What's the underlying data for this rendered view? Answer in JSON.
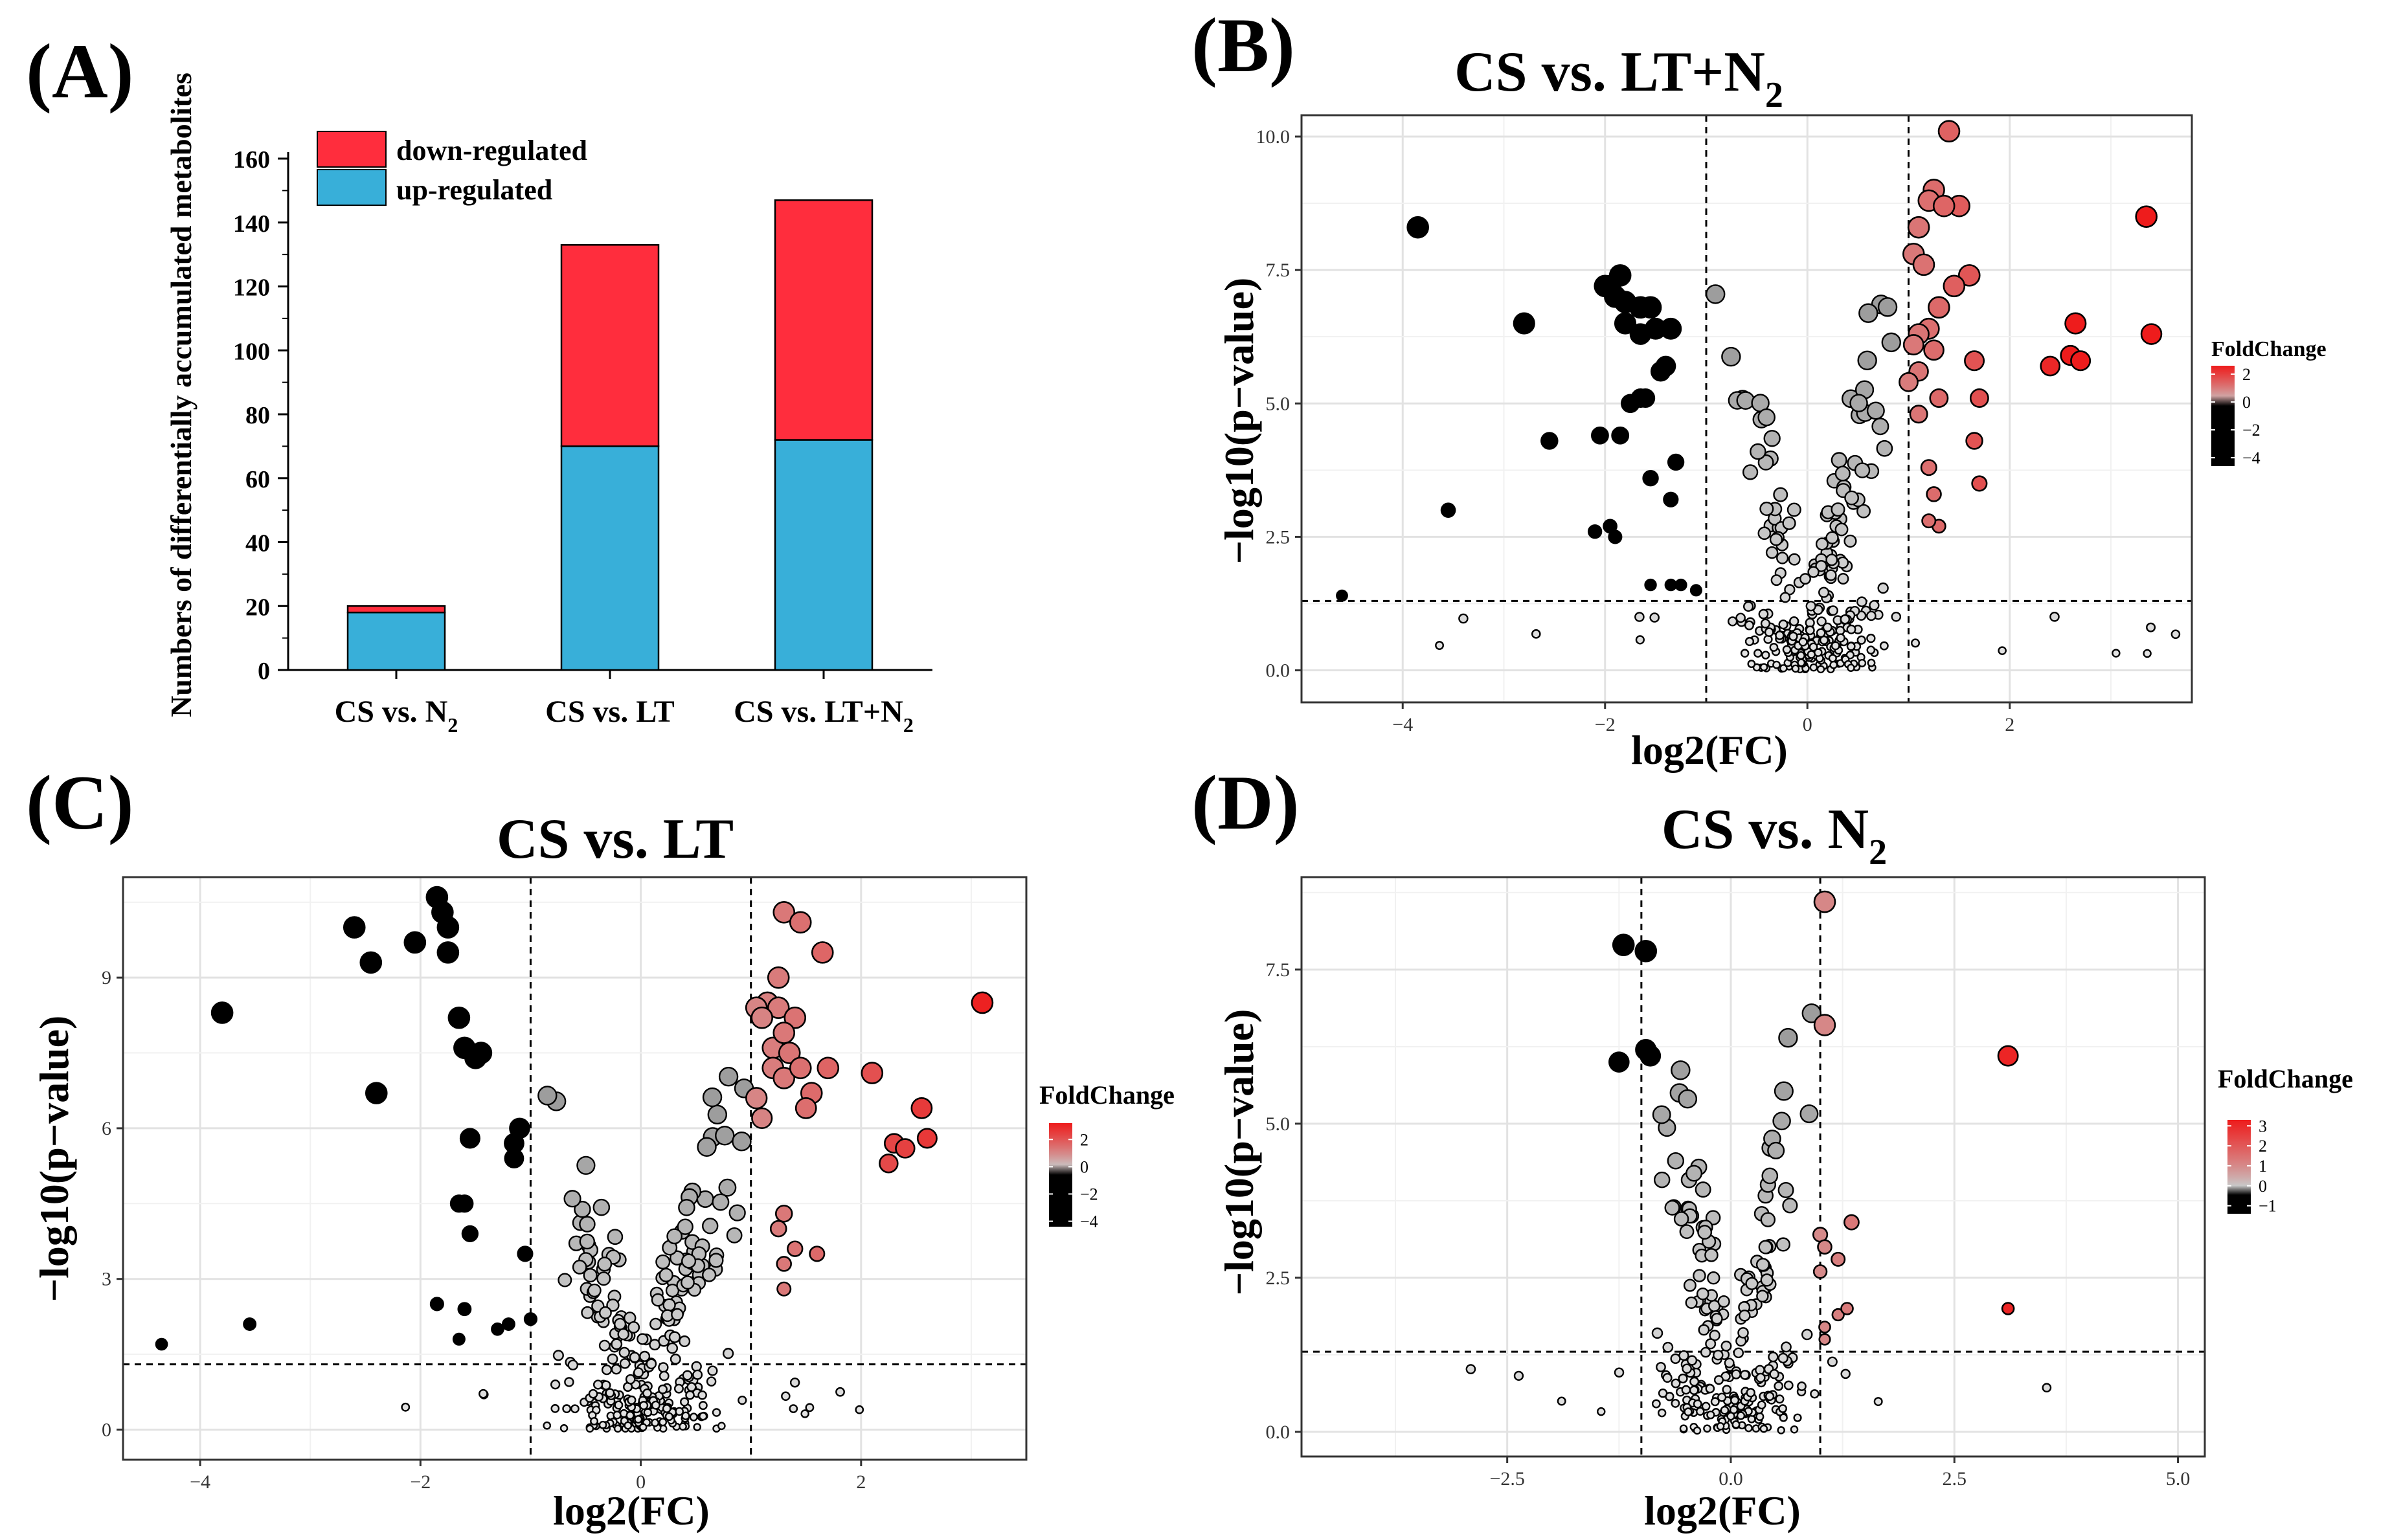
{
  "panels": {
    "A": "(A)",
    "B": "(B)",
    "C": "(C)",
    "D": "(D)"
  },
  "colors": {
    "down": "#ff2d3d",
    "up": "#38afd9",
    "grid": "#e6e6e6",
    "neutral": "#c8c8c8",
    "high": "#ee1c1c",
    "low": "#0b1cff"
  },
  "chart_data": [
    {
      "id": "A",
      "type": "bar",
      "stacked": true,
      "title": "",
      "xlabel": "",
      "ylabel": "Numbers of differentially accumulated metabolites",
      "ylim": [
        0,
        160
      ],
      "yticks": [
        "0",
        "20",
        "40",
        "60",
        "80",
        "100",
        "120",
        "140",
        "160"
      ],
      "categories": [
        {
          "main": "CS vs. N",
          "sub": "2",
          "tail": ""
        },
        {
          "main": "CS vs. LT",
          "sub": "",
          "tail": ""
        },
        {
          "main": "CS vs. LT+N",
          "sub": "2",
          "tail": ""
        }
      ],
      "series": [
        {
          "name": "up-regulated",
          "values": [
            18,
            70,
            72
          ]
        },
        {
          "name": "down-regulated",
          "values": [
            2,
            63,
            75
          ]
        }
      ],
      "legend": [
        "down-regulated",
        "up-regulated"
      ]
    },
    {
      "id": "B",
      "type": "scatter",
      "title": {
        "main": "CS vs. LT+N",
        "sub": "2"
      },
      "xlabel": "log2(FC)",
      "ylabel": "−log10(p−value)",
      "xlim": [
        -5.0,
        3.8
      ],
      "ylim": [
        -0.6,
        10.4
      ],
      "xticks": [
        {
          "v": -4,
          "t": "−4"
        },
        {
          "v": -2,
          "t": "−2"
        },
        {
          "v": 0,
          "t": "0"
        },
        {
          "v": 2,
          "t": "2"
        }
      ],
      "yticks": [
        {
          "v": 0,
          "t": "0.0"
        },
        {
          "v": 2.5,
          "t": "2.5"
        },
        {
          "v": 5,
          "t": "5.0"
        },
        {
          "v": 7.5,
          "t": "7.5"
        },
        {
          "v": 10,
          "t": "10.0"
        }
      ],
      "vlines": [
        -1,
        1
      ],
      "hline": 1.3,
      "colorbar": {
        "title": "FoldChange",
        "ticks": [
          {
            "v": 2,
            "t": "2"
          },
          {
            "v": 0,
            "t": "0"
          },
          {
            "v": -2,
            "t": "−2"
          },
          {
            "v": -4,
            "t": "−4"
          }
        ],
        "min": -4.6,
        "max": 2.6
      },
      "seed": 11,
      "background_count": 290,
      "sig_points": [
        [
          1.4,
          10.1
        ],
        [
          1.25,
          9.0
        ],
        [
          1.2,
          8.8
        ],
        [
          1.5,
          8.7
        ],
        [
          1.35,
          8.7
        ],
        [
          1.1,
          8.3
        ],
        [
          1.6,
          7.4
        ],
        [
          1.45,
          7.2
        ],
        [
          1.05,
          7.8
        ],
        [
          1.15,
          7.6
        ],
        [
          1.3,
          6.8
        ],
        [
          1.2,
          6.4
        ],
        [
          1.1,
          6.3
        ],
        [
          1.05,
          6.1
        ],
        [
          1.25,
          6.0
        ],
        [
          1.65,
          5.8
        ],
        [
          1.1,
          5.6
        ],
        [
          1.0,
          5.4
        ],
        [
          1.3,
          5.1
        ],
        [
          1.7,
          5.1
        ],
        [
          1.1,
          4.8
        ],
        [
          1.65,
          4.3
        ],
        [
          1.2,
          3.8
        ],
        [
          1.7,
          3.5
        ],
        [
          1.25,
          3.3
        ],
        [
          1.3,
          2.7
        ],
        [
          1.2,
          2.8
        ],
        [
          2.4,
          5.7
        ],
        [
          2.6,
          5.9
        ],
        [
          2.7,
          5.8
        ],
        [
          2.65,
          6.5
        ],
        [
          3.35,
          8.5
        ],
        [
          3.4,
          6.3
        ],
        [
          -3.85,
          8.3
        ],
        [
          -2.8,
          6.5
        ],
        [
          -3.55,
          3.0
        ],
        [
          -4.6,
          1.4
        ],
        [
          -2.55,
          4.3
        ],
        [
          -1.95,
          7.2
        ],
        [
          -1.9,
          7.0
        ],
        [
          -1.85,
          7.4
        ],
        [
          -1.8,
          6.9
        ],
        [
          -2.0,
          7.2
        ],
        [
          -1.65,
          6.8
        ],
        [
          -1.55,
          6.8
        ],
        [
          -1.5,
          6.4
        ],
        [
          -1.8,
          6.5
        ],
        [
          -1.65,
          6.3
        ],
        [
          -1.35,
          6.4
        ],
        [
          -1.4,
          5.7
        ],
        [
          -1.45,
          5.6
        ],
        [
          -1.75,
          5.0
        ],
        [
          -1.65,
          5.1
        ],
        [
          -1.6,
          5.1
        ],
        [
          -1.55,
          3.6
        ],
        [
          -2.05,
          4.4
        ],
        [
          -1.85,
          4.4
        ],
        [
          -2.1,
          2.6
        ],
        [
          -1.9,
          2.5
        ],
        [
          -1.95,
          2.7
        ],
        [
          -1.3,
          3.9
        ],
        [
          -1.35,
          3.2
        ],
        [
          -1.25,
          1.6
        ],
        [
          -1.55,
          1.6
        ],
        [
          -1.35,
          1.6
        ],
        [
          -1.1,
          1.5
        ]
      ]
    },
    {
      "id": "C",
      "type": "scatter",
      "title": {
        "main": "CS vs. LT",
        "sub": ""
      },
      "xlabel": "log2(FC)",
      "ylabel": "−log10(p−value)",
      "xlim": [
        -4.7,
        3.5
      ],
      "ylim": [
        -0.6,
        11.0
      ],
      "xticks": [
        {
          "v": -4,
          "t": "−4"
        },
        {
          "v": -2,
          "t": "−2"
        },
        {
          "v": 0,
          "t": "0"
        },
        {
          "v": 2,
          "t": "2"
        }
      ],
      "yticks": [
        {
          "v": 0,
          "t": "0"
        },
        {
          "v": 3,
          "t": "3"
        },
        {
          "v": 6,
          "t": "6"
        },
        {
          "v": 9,
          "t": "9"
        }
      ],
      "vlines": [
        -1,
        1
      ],
      "hline": 1.3,
      "colorbar": {
        "title": "FoldChange",
        "ticks": [
          {
            "v": 2,
            "t": "2"
          },
          {
            "v": 0,
            "t": "0"
          },
          {
            "v": -2,
            "t": "−2"
          },
          {
            "v": -4,
            "t": "−4"
          }
        ],
        "min": -4.4,
        "max": 3.2
      },
      "seed": 23,
      "background_count": 330,
      "sig_points": [
        [
          1.3,
          10.3
        ],
        [
          1.45,
          10.1
        ],
        [
          1.65,
          9.5
        ],
        [
          1.25,
          9.0
        ],
        [
          1.15,
          8.5
        ],
        [
          1.05,
          8.4
        ],
        [
          1.25,
          8.4
        ],
        [
          1.1,
          8.2
        ],
        [
          1.4,
          8.2
        ],
        [
          1.2,
          7.6
        ],
        [
          1.3,
          7.9
        ],
        [
          1.35,
          7.5
        ],
        [
          1.2,
          7.2
        ],
        [
          1.3,
          7.0
        ],
        [
          1.45,
          7.2
        ],
        [
          1.55,
          6.7
        ],
        [
          1.5,
          6.4
        ],
        [
          1.05,
          6.6
        ],
        [
          1.1,
          6.2
        ],
        [
          1.7,
          7.2
        ],
        [
          2.1,
          7.1
        ],
        [
          3.1,
          8.5
        ],
        [
          2.55,
          6.4
        ],
        [
          2.3,
          5.7
        ],
        [
          2.4,
          5.6
        ],
        [
          2.6,
          5.8
        ],
        [
          2.25,
          5.3
        ],
        [
          1.3,
          4.3
        ],
        [
          1.25,
          4.0
        ],
        [
          1.6,
          3.5
        ],
        [
          1.3,
          3.3
        ],
        [
          1.3,
          2.8
        ],
        [
          1.4,
          3.6
        ],
        [
          -3.8,
          8.3
        ],
        [
          -2.6,
          10.0
        ],
        [
          -2.45,
          9.3
        ],
        [
          -2.05,
          9.7
        ],
        [
          -1.85,
          10.6
        ],
        [
          -1.8,
          10.3
        ],
        [
          -1.75,
          10.0
        ],
        [
          -1.75,
          9.5
        ],
        [
          -1.65,
          8.2
        ],
        [
          -1.6,
          7.6
        ],
        [
          -1.5,
          7.4
        ],
        [
          -1.45,
          7.5
        ],
        [
          -2.4,
          6.7
        ],
        [
          -1.55,
          5.8
        ],
        [
          -1.15,
          5.7
        ],
        [
          -1.1,
          6.0
        ],
        [
          -1.15,
          5.4
        ],
        [
          -1.65,
          4.5
        ],
        [
          -1.6,
          4.5
        ],
        [
          -1.55,
          3.9
        ],
        [
          -1.05,
          3.5
        ],
        [
          -1.2,
          2.1
        ],
        [
          -1.3,
          2.0
        ],
        [
          -1.6,
          2.4
        ],
        [
          -1.85,
          2.5
        ],
        [
          -1.65,
          1.8
        ],
        [
          -3.55,
          2.1
        ],
        [
          -4.35,
          1.7
        ],
        [
          -1.0,
          2.2
        ]
      ]
    },
    {
      "id": "D",
      "type": "scatter",
      "title": {
        "main": "CS vs. N",
        "sub": "2"
      },
      "xlabel": "log2(FC)",
      "ylabel": "−log10(p−value)",
      "xlim": [
        -4.8,
        5.3
      ],
      "ylim": [
        -0.4,
        9.0
      ],
      "xticks": [
        {
          "v": -2.5,
          "t": "−2.5"
        },
        {
          "v": 0,
          "t": "0.0"
        },
        {
          "v": 2.5,
          "t": "2.5"
        },
        {
          "v": 5,
          "t": "5.0"
        }
      ],
      "yticks": [
        {
          "v": 0,
          "t": "0.0"
        },
        {
          "v": 2.5,
          "t": "2.5"
        },
        {
          "v": 5,
          "t": "5.0"
        },
        {
          "v": 7.5,
          "t": "7.5"
        }
      ],
      "vlines": [
        -1,
        1
      ],
      "hline": 1.3,
      "colorbar": {
        "title": "FoldChange",
        "ticks": [
          {
            "v": 3,
            "t": "3"
          },
          {
            "v": 2,
            "t": "2"
          },
          {
            "v": 1,
            "t": "1"
          },
          {
            "v": 0,
            "t": "0"
          },
          {
            "v": -1,
            "t": "−1"
          }
        ],
        "min": -1.4,
        "max": 3.3
      },
      "seed": 37,
      "background_count": 260,
      "sig_points": [
        [
          1.05,
          8.6
        ],
        [
          1.05,
          6.6
        ],
        [
          3.1,
          6.1
        ],
        [
          3.1,
          2.0
        ],
        [
          1.0,
          3.2
        ],
        [
          1.05,
          3.0
        ],
        [
          1.2,
          2.8
        ],
        [
          1.35,
          3.4
        ],
        [
          1.0,
          2.6
        ],
        [
          1.2,
          1.9
        ],
        [
          1.3,
          2.0
        ],
        [
          1.05,
          1.7
        ],
        [
          1.05,
          1.5
        ],
        [
          -1.2,
          7.9
        ],
        [
          -0.95,
          7.8
        ],
        [
          -0.95,
          6.2
        ],
        [
          -0.9,
          6.1
        ],
        [
          -1.25,
          6.0
        ]
      ]
    }
  ]
}
